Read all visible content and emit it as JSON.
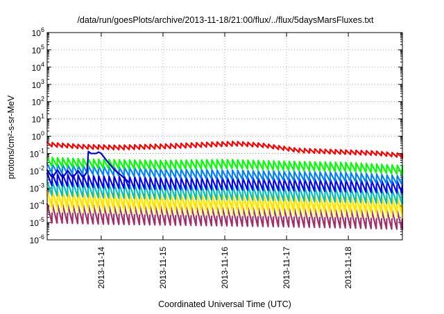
{
  "chart_data": {
    "type": "line",
    "title": "/data/run/goesPlots/archive/2013-11-18/21:00/flux/../flux/5daysMarsFluxes.txt",
    "xlabel": "Coordinated Universal Time (UTC)",
    "ylabel": "protons/cm²-s-sr-MeV",
    "x_range": [
      "2013-11-13T03:00",
      "2013-11-18T21:00"
    ],
    "ylim": [
      1e-06,
      1000000.0
    ],
    "yscale": "log",
    "grid": true,
    "x_ticks": [
      "2013-11-14",
      "2013-11-15",
      "2013-11-16",
      "2013-11-17",
      "2013-11-18"
    ],
    "y_ticks": [
      {
        "base": "10",
        "exp": "6"
      },
      {
        "base": "10",
        "exp": "5"
      },
      {
        "base": "10",
        "exp": "4"
      },
      {
        "base": "10",
        "exp": "3"
      },
      {
        "base": "10",
        "exp": "2"
      },
      {
        "base": "10",
        "exp": "1"
      },
      {
        "base": "10",
        "exp": "0"
      },
      {
        "base": "10",
        "exp": "-1"
      },
      {
        "base": "10",
        "exp": "-2"
      },
      {
        "base": "10",
        "exp": "-3"
      },
      {
        "base": "10",
        "exp": "-4"
      },
      {
        "base": "10",
        "exp": "-5"
      },
      {
        "base": "10",
        "exp": "-6"
      }
    ],
    "sawtooth_period_hours": 2,
    "series": [
      {
        "color": "#ff0000",
        "envelope": [
          [
            "2013-11-13T03:00",
            0.45
          ],
          [
            "2013-11-13T16:00",
            0.33
          ],
          [
            "2013-11-14T06:00",
            0.3
          ],
          [
            "2013-11-15T00:00",
            0.35
          ],
          [
            "2013-11-15T18:00",
            0.45
          ],
          [
            "2013-11-16T04:00",
            0.5
          ],
          [
            "2013-11-16T14:00",
            0.4
          ],
          [
            "2013-11-17T04:00",
            0.2
          ],
          [
            "2013-11-17T18:00",
            0.17
          ],
          [
            "2013-11-18T10:00",
            0.14
          ],
          [
            "2013-11-18T21:00",
            0.1
          ]
        ],
        "dip": 0.55
      },
      {
        "color": "#00ff00",
        "envelope": [
          [
            "2013-11-13T03:00",
            0.06
          ],
          [
            "2013-11-14T00:00",
            0.045
          ],
          [
            "2013-11-15T00:00",
            0.04
          ],
          [
            "2013-11-16T00:00",
            0.045
          ],
          [
            "2013-11-17T00:00",
            0.035
          ],
          [
            "2013-11-18T00:00",
            0.03
          ],
          [
            "2013-11-18T21:00",
            0.02
          ]
        ],
        "dip": 0.3
      },
      {
        "color": "#0080ff",
        "envelope": [
          [
            "2013-11-13T03:00",
            0.025
          ],
          [
            "2013-11-14T00:00",
            0.018
          ],
          [
            "2013-11-15T00:00",
            0.013
          ],
          [
            "2013-11-16T00:00",
            0.011
          ],
          [
            "2013-11-17T00:00",
            0.009
          ],
          [
            "2013-11-18T00:00",
            0.008
          ],
          [
            "2013-11-18T21:00",
            0.005
          ]
        ],
        "dip": 0.3
      },
      {
        "color": "#0000ff",
        "envelope": [
          [
            "2013-11-13T03:00",
            0.007
          ],
          [
            "2013-11-14T00:00",
            0.005
          ],
          [
            "2013-11-15T00:00",
            0.004
          ],
          [
            "2013-11-16T00:00",
            0.004
          ],
          [
            "2013-11-17T00:00",
            0.0035
          ],
          [
            "2013-11-18T00:00",
            0.003
          ],
          [
            "2013-11-18T21:00",
            0.0025
          ]
        ],
        "dip": 0.2
      },
      {
        "color": "#00c0c0",
        "envelope": [
          [
            "2013-11-13T03:00",
            0.0025
          ],
          [
            "2013-11-14T00:00",
            0.0018
          ],
          [
            "2013-11-15T00:00",
            0.0015
          ],
          [
            "2013-11-16T00:00",
            0.0014
          ],
          [
            "2013-11-17T00:00",
            0.0012
          ],
          [
            "2013-11-18T00:00",
            0.001
          ],
          [
            "2013-11-18T21:00",
            0.0008
          ]
        ],
        "dip": 0.15
      },
      {
        "color": "#ffe000",
        "envelope": [
          [
            "2013-11-13T03:00",
            0.0007
          ],
          [
            "2013-11-14T00:00",
            0.0006
          ],
          [
            "2013-11-15T00:00",
            0.0005
          ],
          [
            "2013-11-16T00:00",
            0.0005
          ],
          [
            "2013-11-17T00:00",
            0.0004
          ],
          [
            "2013-11-18T00:00",
            0.00035
          ],
          [
            "2013-11-18T21:00",
            0.0003
          ]
        ],
        "dip": 0.12
      },
      {
        "color": "#ffff80",
        "envelope": [
          [
            "2013-11-13T03:00",
            0.00035
          ],
          [
            "2013-11-14T00:00",
            0.0003
          ],
          [
            "2013-11-15T00:00",
            0.00025
          ],
          [
            "2013-11-16T00:00",
            0.00022
          ],
          [
            "2013-11-17T00:00",
            0.0002
          ],
          [
            "2013-11-18T00:00",
            0.00018
          ],
          [
            "2013-11-18T21:00",
            0.00015
          ]
        ],
        "dip": 0.12
      },
      {
        "color": "#a0306a",
        "envelope": [
          [
            "2013-11-13T03:00",
            0.00012
          ],
          [
            "2013-11-14T00:00",
            0.0001
          ],
          [
            "2013-11-15T00:00",
            9e-05
          ],
          [
            "2013-11-16T00:00",
            8e-05
          ],
          [
            "2013-11-17T00:00",
            7e-05
          ],
          [
            "2013-11-18T00:00",
            6e-05
          ],
          [
            "2013-11-18T21:00",
            5e-05
          ]
        ],
        "dip": 0.08
      }
    ],
    "event_series": {
      "color": "#0000d0",
      "points": [
        [
          "2013-11-13T03:00",
          0.011
        ],
        [
          "2013-11-13T05:00",
          0.004
        ],
        [
          "2013-11-13T07:00",
          0.011
        ],
        [
          "2013-11-13T09:00",
          0.004
        ],
        [
          "2013-11-13T11:00",
          0.01
        ],
        [
          "2013-11-13T13:00",
          0.004
        ],
        [
          "2013-11-13T15:00",
          0.01
        ],
        [
          "2013-11-13T17:00",
          0.004
        ],
        [
          "2013-11-13T18:30",
          0.009
        ],
        [
          "2013-11-13T19:00",
          0.13
        ],
        [
          "2013-11-13T20:00",
          0.1
        ],
        [
          "2013-11-13T22:00",
          0.1
        ],
        [
          "2013-11-13T23:00",
          0.12
        ],
        [
          "2013-11-14T00:00",
          0.1
        ],
        [
          "2013-11-14T02:00",
          0.04
        ],
        [
          "2013-11-14T05:00",
          0.012
        ],
        [
          "2013-11-14T08:00",
          0.005
        ],
        [
          "2013-11-14T11:00",
          0.002
        ]
      ]
    }
  }
}
